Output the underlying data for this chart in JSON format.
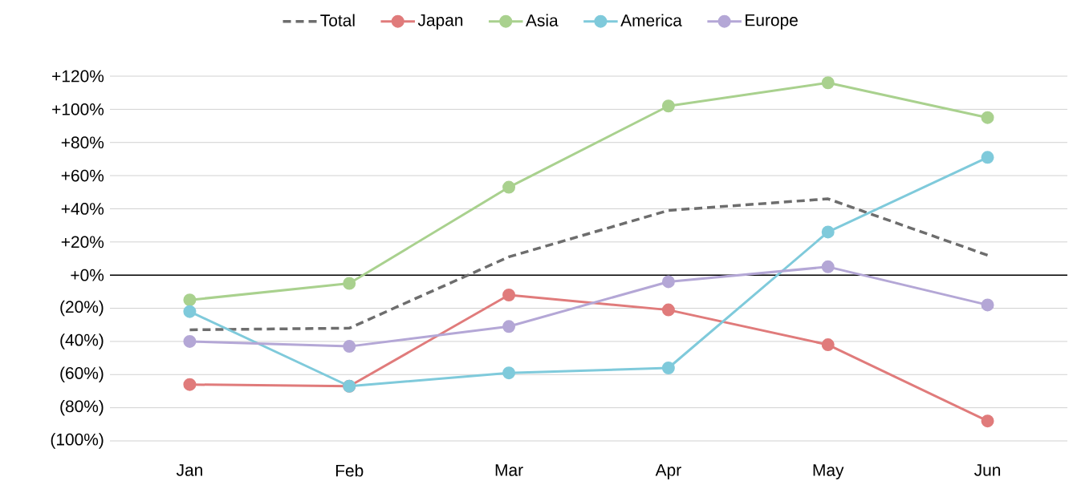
{
  "chart_data": {
    "type": "line",
    "categories": [
      "Jan",
      "Feb",
      "Mar",
      "Apr",
      "May",
      "Jun"
    ],
    "series": [
      {
        "name": "Total",
        "color": "#6d6d6d",
        "line_style": "dashed",
        "marker": "none",
        "values": [
          -33,
          -32,
          11,
          39,
          46,
          12
        ]
      },
      {
        "name": "Japan",
        "color": "#e07b7b",
        "line_style": "solid",
        "marker": "circle",
        "values": [
          -66,
          -67,
          -12,
          -21,
          -42,
          -88
        ]
      },
      {
        "name": "Asia",
        "color": "#a9d18e",
        "line_style": "solid",
        "marker": "circle",
        "values": [
          -15,
          -5,
          53,
          102,
          116,
          95
        ]
      },
      {
        "name": "America",
        "color": "#7fcadb",
        "line_style": "solid",
        "marker": "circle",
        "values": [
          -22,
          -67,
          -59,
          -56,
          26,
          71
        ]
      },
      {
        "name": "Europe",
        "color": "#b4a7d6",
        "line_style": "solid",
        "marker": "circle",
        "values": [
          -40,
          -43,
          -31,
          -4,
          5,
          -18
        ]
      }
    ],
    "ylim": [
      -100,
      120
    ],
    "yticks": [
      {
        "value": -100,
        "label": "(100%)"
      },
      {
        "value": -80,
        "label": "(80%)"
      },
      {
        "value": -60,
        "label": "(60%)"
      },
      {
        "value": -40,
        "label": "(40%)"
      },
      {
        "value": -20,
        "label": "(20%)"
      },
      {
        "value": 0,
        "label": "+0%"
      },
      {
        "value": 20,
        "label": "+20%"
      },
      {
        "value": 40,
        "label": "+40%"
      },
      {
        "value": 60,
        "label": "+60%"
      },
      {
        "value": 80,
        "label": "+80%"
      },
      {
        "value": 100,
        "label": "+100%"
      },
      {
        "value": 120,
        "label": "+120%"
      }
    ],
    "ref_lines": [
      {
        "axis": "y",
        "value": 0,
        "color": "#000000"
      }
    ],
    "grid": "y",
    "legend": "top"
  }
}
